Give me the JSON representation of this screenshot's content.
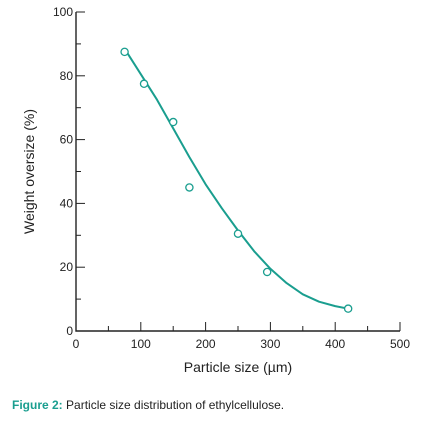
{
  "chart_data": {
    "type": "scatter",
    "title": "",
    "xlabel": "Particle size (µm)",
    "ylabel": "Weight oversize (%)",
    "xlim": [
      0,
      500
    ],
    "ylim": [
      0,
      100
    ],
    "x_ticks": [
      0,
      100,
      200,
      300,
      400,
      500
    ],
    "y_ticks": [
      0,
      20,
      40,
      60,
      80,
      100
    ],
    "grid": false,
    "colors": {
      "series": "#1a9e8f",
      "axis": "#222222"
    },
    "series": [
      {
        "marker": "open-circle",
        "points": [
          {
            "x": 75,
            "y": 87.5
          },
          {
            "x": 105,
            "y": 77.5
          },
          {
            "x": 150,
            "y": 65.5
          },
          {
            "x": 175,
            "y": 45
          },
          {
            "x": 250,
            "y": 30.5
          },
          {
            "x": 295,
            "y": 18.5
          },
          {
            "x": 420,
            "y": 7
          }
        ],
        "fit_curve": [
          {
            "x": 75,
            "y": 88.5
          },
          {
            "x": 100,
            "y": 80.5
          },
          {
            "x": 125,
            "y": 72.5
          },
          {
            "x": 150,
            "y": 63.5
          },
          {
            "x": 175,
            "y": 54.5
          },
          {
            "x": 200,
            "y": 46
          },
          {
            "x": 225,
            "y": 38.5
          },
          {
            "x": 250,
            "y": 31.5
          },
          {
            "x": 275,
            "y": 25
          },
          {
            "x": 300,
            "y": 19.5
          },
          {
            "x": 325,
            "y": 15
          },
          {
            "x": 350,
            "y": 11.5
          },
          {
            "x": 375,
            "y": 9.2
          },
          {
            "x": 400,
            "y": 7.8
          },
          {
            "x": 420,
            "y": 7
          }
        ]
      }
    ]
  },
  "caption": {
    "label": "Figure 2:",
    "text": "Particle size distribution of ethylcellulose."
  }
}
